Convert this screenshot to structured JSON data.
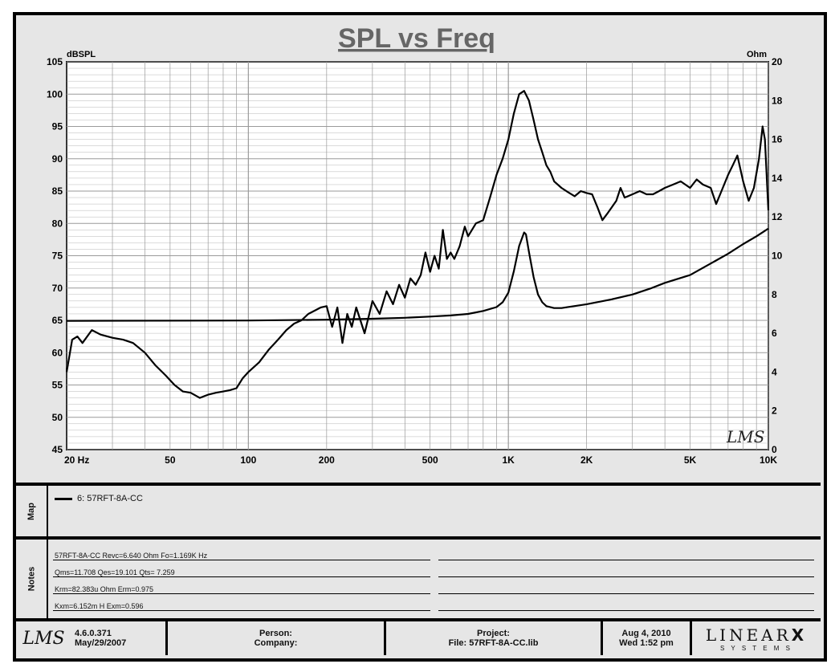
{
  "chart_data": {
    "type": "line",
    "title": "SPL vs Freq",
    "y_left_label": "dBSPL",
    "y_right_label": "Ohm",
    "x_scale": "log",
    "xlim": [
      20,
      10000
    ],
    "ylim_left": [
      45,
      105
    ],
    "ylim_right": [
      0,
      20
    ],
    "x_tick_labels": [
      "20 Hz",
      "50",
      "100",
      "200",
      "500",
      "1K",
      "2K",
      "5K",
      "10K"
    ],
    "y_left_ticks": [
      "105",
      "100",
      "95",
      "90",
      "85",
      "80",
      "75",
      "70",
      "65",
      "60",
      "55",
      "50",
      "45"
    ],
    "y_right_ticks": [
      "20",
      "18",
      "16",
      "14",
      "12",
      "10",
      "8",
      "6",
      "4",
      "2",
      "0"
    ],
    "grid": true,
    "watermark": "LMS",
    "series": [
      {
        "axis": "left",
        "x": [
          20,
          21,
          22,
          23,
          25,
          27,
          30,
          33,
          36,
          40,
          44,
          48,
          52,
          56,
          60,
          65,
          70,
          75,
          80,
          85,
          90,
          95,
          100,
          110,
          120,
          130,
          140,
          150,
          160,
          170,
          180,
          190,
          200,
          210,
          220,
          230,
          240,
          250,
          260,
          280,
          300,
          320,
          340,
          360,
          380,
          400,
          420,
          440,
          460,
          480,
          500,
          520,
          540,
          560,
          580,
          600,
          620,
          650,
          680,
          700,
          750,
          800,
          850,
          900,
          950,
          1000,
          1050,
          1100,
          1150,
          1200,
          1250,
          1300,
          1350,
          1400,
          1450,
          1500,
          1600,
          1700,
          1800,
          1900,
          2000,
          2100,
          2200,
          2300,
          2400,
          2500,
          2600,
          2700,
          2800,
          3000,
          3200,
          3400,
          3600,
          3800,
          4000,
          4300,
          4600,
          5000,
          5300,
          5600,
          6000,
          6300,
          6600,
          7000,
          7300,
          7600,
          8000,
          8400,
          8800,
          9200,
          9500,
          9700,
          10000
        ],
        "values": [
          57,
          62,
          62.5,
          61.5,
          63.5,
          62.8,
          62.3,
          62,
          61.5,
          60,
          58,
          56.5,
          55,
          54,
          53.8,
          53,
          53.5,
          53.8,
          54,
          54.2,
          54.5,
          56,
          57,
          58.5,
          60.5,
          62,
          63.5,
          64.5,
          65,
          66,
          66.5,
          67,
          67.2,
          64,
          67,
          61.5,
          66,
          64,
          67,
          63,
          68,
          66,
          69.5,
          67.5,
          70.5,
          68.5,
          71.5,
          70.5,
          72,
          75.5,
          72.5,
          75,
          73,
          79,
          74.5,
          75.5,
          74.5,
          76.5,
          79.5,
          78,
          80,
          80.5,
          84,
          87.5,
          90,
          93,
          97,
          100,
          100.5,
          99,
          96,
          93,
          91,
          89,
          88,
          86.5,
          85.5,
          84.8,
          84.2,
          85,
          84.7,
          84.5,
          82.5,
          80.5,
          81.5,
          82.5,
          83.5,
          85.5,
          84,
          84.5,
          85,
          84.5,
          84.5,
          85,
          85.5,
          86,
          86.5,
          85.5,
          86.8,
          86,
          85.5,
          83,
          85,
          87.5,
          89,
          90.5,
          86.5,
          83.5,
          85.5,
          90,
          95,
          93,
          82
        ]
      },
      {
        "axis": "right",
        "x": [
          20,
          100,
          200,
          300,
          400,
          500,
          600,
          700,
          800,
          900,
          950,
          1000,
          1050,
          1100,
          1150,
          1169,
          1200,
          1250,
          1300,
          1350,
          1400,
          1500,
          1600,
          2000,
          2500,
          3000,
          3500,
          4000,
          5000,
          6000,
          7000,
          8000,
          9000,
          10000
        ],
        "values": [
          6.64,
          6.66,
          6.7,
          6.75,
          6.8,
          6.86,
          6.92,
          7.0,
          7.15,
          7.35,
          7.6,
          8.1,
          9.2,
          10.5,
          11.2,
          11.1,
          10.2,
          8.9,
          8.0,
          7.6,
          7.4,
          7.3,
          7.3,
          7.5,
          7.75,
          8.0,
          8.3,
          8.6,
          9.0,
          9.6,
          10.1,
          10.6,
          11.0,
          11.4
        ]
      }
    ]
  },
  "map": {
    "label": "Map",
    "entry": "6: 57RFT-8A-CC"
  },
  "notes": {
    "label": "Notes",
    "lines": [
      "57RFT-8A-CC Revc=6.640 Ohm  Fo=1.169K Hz",
      "Qms=11.708  Qes=19.101  Qts= 7.259",
      "Krm=82.383u Ohm  Erm=0.975",
      "Kxm=6.152m H  Exm=0.596"
    ]
  },
  "footer": {
    "logo": "LMS",
    "version": "4.6.0.371",
    "version_date": "May/29/2007",
    "person_label": "Person:",
    "company_label": "Company:",
    "project_label": "Project:",
    "file_label": "File: 57RFT-8A-CC.lib",
    "date": "Aug  4, 2010",
    "time": "Wed  1:52 pm",
    "brand_main": "LINEAR",
    "brand_x": "X",
    "brand_sub": "S Y S T E M S"
  },
  "colors": {
    "background": "#e6e6e6",
    "plot_background": "#ffffff",
    "gridline": "#9a9a9a",
    "line": "#000000"
  }
}
